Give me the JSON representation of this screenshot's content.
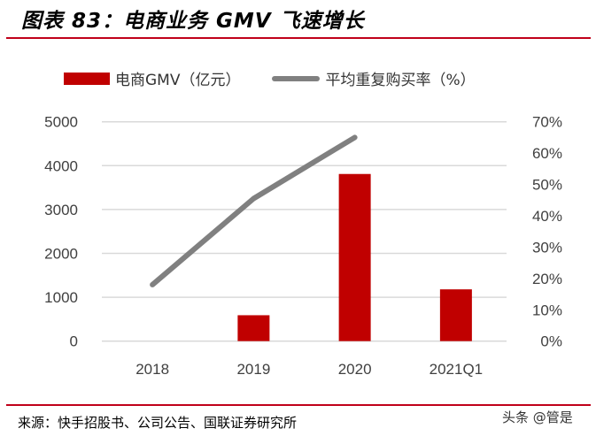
{
  "title": "图表 83：电商业务 GMV 飞速增长",
  "source": "来源：快手招股书、公司公告、国联证券研究所",
  "watermark": "头条 @管是",
  "colors": {
    "bar": "#c00000",
    "line": "#808080",
    "rule": "#c0001a"
  },
  "chart_data": {
    "type": "bar+line",
    "categories": [
      "2018",
      "2019",
      "2020",
      "2021Q1"
    ],
    "series": [
      {
        "name": "电商GMV（亿元）",
        "type": "bar",
        "axis": "left",
        "values": [
          null,
          590,
          3810,
          1180
        ]
      },
      {
        "name": "平均重复购买率（%）",
        "type": "line",
        "axis": "right",
        "values": [
          18,
          45.5,
          65,
          null
        ]
      }
    ],
    "left_axis": {
      "ylim": [
        0,
        5000
      ],
      "ticks": [
        "0",
        "1000",
        "2000",
        "3000",
        "4000",
        "5000"
      ]
    },
    "right_axis": {
      "ylim": [
        0,
        70
      ],
      "ticks": [
        "0%",
        "10%",
        "20%",
        "30%",
        "40%",
        "50%",
        "60%",
        "70%"
      ]
    },
    "grid": true,
    "legend_position": "top"
  }
}
